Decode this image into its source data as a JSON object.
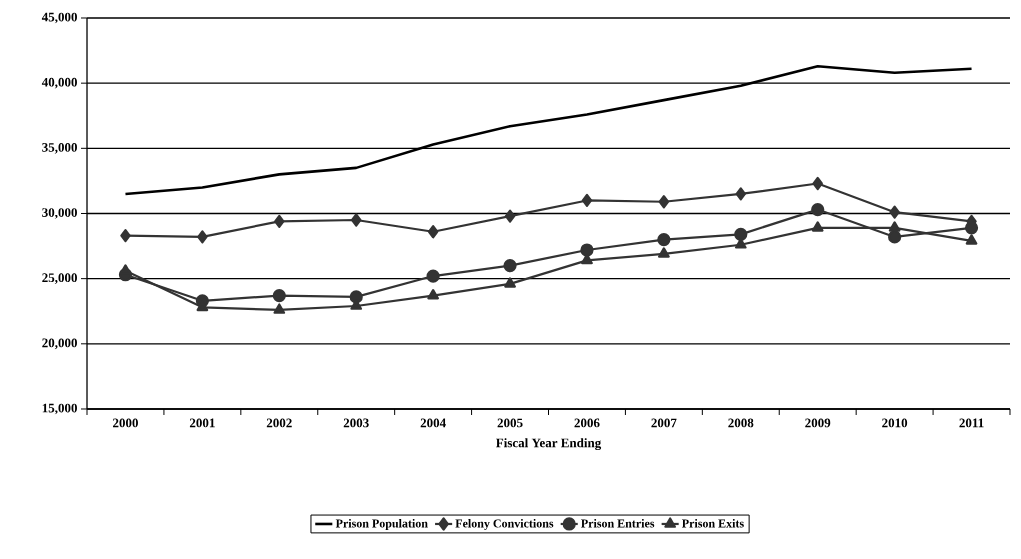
{
  "chart_data": {
    "type": "line",
    "xlabel": "Fiscal Year Ending",
    "categories": [
      "2000",
      "2001",
      "2002",
      "2003",
      "2004",
      "2005",
      "2006",
      "2007",
      "2008",
      "2009",
      "2010",
      "2011"
    ],
    "series": [
      {
        "name": "Prison Population",
        "color": "#000000",
        "marker": "none",
        "values": [
          31500,
          32000,
          33000,
          33500,
          35300,
          36700,
          37600,
          38700,
          39800,
          41300,
          40800,
          41100
        ]
      },
      {
        "name": "Felony Convictions",
        "color": "#333333",
        "marker": "diamond",
        "values": [
          28300,
          28200,
          29400,
          29500,
          28600,
          29800,
          31000,
          30900,
          31500,
          32300,
          30100,
          29400
        ]
      },
      {
        "name": "Prison Entries",
        "color": "#333333",
        "marker": "circle",
        "values": [
          25300,
          23300,
          23700,
          23600,
          25200,
          26000,
          27200,
          28000,
          28400,
          30300,
          28200,
          28900
        ]
      },
      {
        "name": "Prison Exits",
        "color": "#333333",
        "marker": "triangle",
        "values": [
          25600,
          22800,
          22600,
          22900,
          23700,
          24600,
          26400,
          26900,
          27600,
          28900,
          28900,
          27900
        ]
      }
    ],
    "ylim": [
      15000,
      45000
    ],
    "yticks": [
      {
        "value": 15000,
        "label": "15,000"
      },
      {
        "value": 20000,
        "label": "20,000"
      },
      {
        "value": 25000,
        "label": "25,000"
      },
      {
        "value": 30000,
        "label": "30,000"
      },
      {
        "value": 35000,
        "label": "35,000"
      },
      {
        "value": 40000,
        "label": "40,000"
      },
      {
        "value": 45000,
        "label": "45,000"
      }
    ],
    "grid": "y",
    "legend": "bottom",
    "line_style": "solid"
  }
}
